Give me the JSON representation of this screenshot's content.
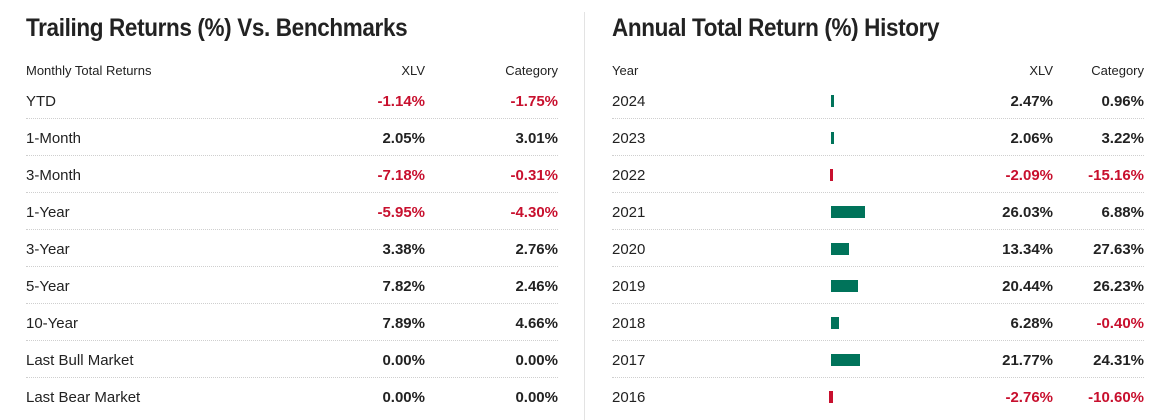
{
  "trailing": {
    "title": "Trailing Returns (%) Vs. Benchmarks",
    "columns": [
      "Monthly Total Returns",
      "XLV",
      "Category"
    ],
    "rows": [
      {
        "label": "YTD",
        "xlv": "-1.14%",
        "category": "-1.75%"
      },
      {
        "label": "1-Month",
        "xlv": "2.05%",
        "category": "3.01%"
      },
      {
        "label": "3-Month",
        "xlv": "-7.18%",
        "category": "-0.31%"
      },
      {
        "label": "1-Year",
        "xlv": "-5.95%",
        "category": "-4.30%"
      },
      {
        "label": "3-Year",
        "xlv": "3.38%",
        "category": "2.76%"
      },
      {
        "label": "5-Year",
        "xlv": "7.82%",
        "category": "2.46%"
      },
      {
        "label": "10-Year",
        "xlv": "7.89%",
        "category": "4.66%"
      },
      {
        "label": "Last Bull Market",
        "xlv": "0.00%",
        "category": "0.00%"
      },
      {
        "label": "Last Bear Market",
        "xlv": "0.00%",
        "category": "0.00%"
      }
    ]
  },
  "annual": {
    "title": "Annual Total Return (%) History",
    "columns": [
      "Year",
      "XLV",
      "Category"
    ],
    "rows": [
      {
        "year": "2024",
        "xlv": "2.47%",
        "category": "0.96%",
        "value": 2.47
      },
      {
        "year": "2023",
        "xlv": "2.06%",
        "category": "3.22%",
        "value": 2.06
      },
      {
        "year": "2022",
        "xlv": "-2.09%",
        "category": "-15.16%",
        "value": -2.09
      },
      {
        "year": "2021",
        "xlv": "26.03%",
        "category": "6.88%",
        "value": 26.03
      },
      {
        "year": "2020",
        "xlv": "13.34%",
        "category": "27.63%",
        "value": 13.34
      },
      {
        "year": "2019",
        "xlv": "20.44%",
        "category": "26.23%",
        "value": 20.44
      },
      {
        "year": "2018",
        "xlv": "6.28%",
        "category": "-0.40%",
        "value": 6.28
      },
      {
        "year": "2017",
        "xlv": "21.77%",
        "category": "24.31%",
        "value": 21.77
      },
      {
        "year": "2016",
        "xlv": "-2.76%",
        "category": "-10.60%",
        "value": -2.76
      }
    ]
  },
  "colors": {
    "positive_bar": "#00735a",
    "negative": "#c8102e"
  }
}
